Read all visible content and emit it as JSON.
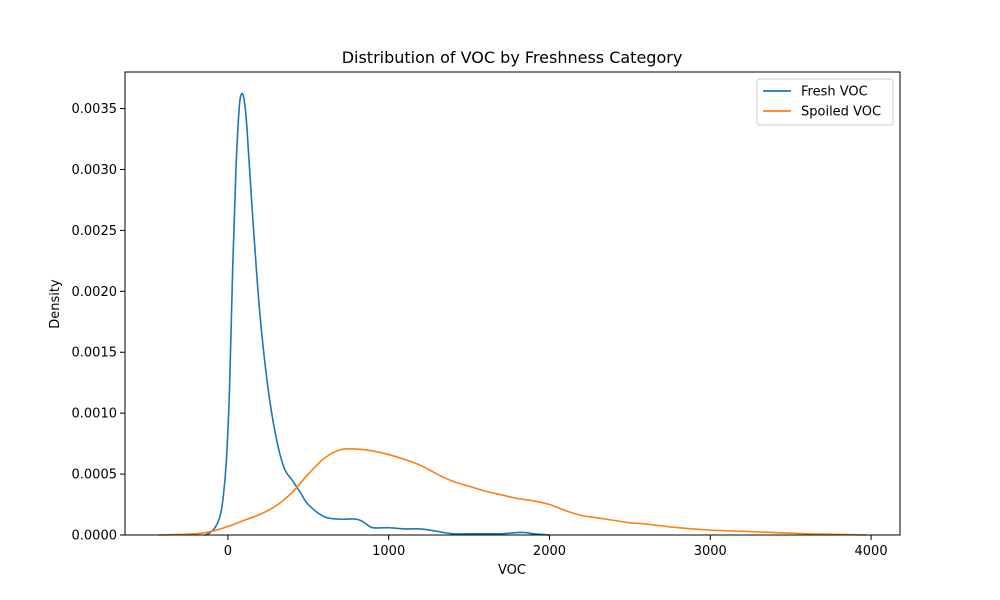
{
  "chart_data": {
    "type": "line",
    "title": "Distribution of VOC by Freshness Category",
    "xlabel": "VOC",
    "ylabel": "Density",
    "xlim": [
      -640,
      4180
    ],
    "ylim": [
      0,
      0.0038
    ],
    "x_ticks": [
      0,
      1000,
      2000,
      3000,
      4000
    ],
    "x_tick_labels": [
      "0",
      "1000",
      "2000",
      "3000",
      "4000"
    ],
    "y_ticks": [
      0,
      0.0005,
      0.001,
      0.0015,
      0.002,
      0.0025,
      0.003,
      0.0035
    ],
    "y_tick_labels": [
      "0.0000",
      "0.0005",
      "0.0010",
      "0.0015",
      "0.0020",
      "0.0025",
      "0.0030",
      "0.0035"
    ],
    "grid": false,
    "legend_position": "upper-right",
    "series": [
      {
        "name": "Fresh VOC",
        "color": "#1f77b4",
        "x": [
          -140,
          -110,
          -80,
          -50,
          -30,
          -10,
          10,
          30,
          50,
          70,
          85,
          100,
          115,
          130,
          160,
          200,
          250,
          300,
          350,
          400,
          450,
          500,
          600,
          700,
          800,
          850,
          900,
          1000,
          1100,
          1200,
          1300,
          1400,
          1500,
          1600,
          1700,
          1800,
          1850,
          1900,
          2000
        ],
        "y": [
          0,
          2e-05,
          6e-05,
          0.00015,
          0.0003,
          0.0006,
          0.0012,
          0.0022,
          0.003,
          0.0035,
          0.00362,
          0.00358,
          0.0034,
          0.0031,
          0.0025,
          0.0018,
          0.0012,
          0.0008,
          0.00055,
          0.00045,
          0.00035,
          0.00025,
          0.00015,
          0.00013,
          0.00013,
          0.0001,
          6e-05,
          6e-05,
          5e-05,
          5e-05,
          3e-05,
          1e-05,
          1e-05,
          1e-05,
          1e-05,
          2e-05,
          2e-05,
          1e-05,
          0
        ]
      },
      {
        "name": "Spoiled VOC",
        "color": "#ff7f0e",
        "x": [
          -430,
          -300,
          -200,
          -100,
          0,
          100,
          200,
          300,
          400,
          500,
          600,
          700,
          800,
          900,
          1000,
          1100,
          1200,
          1300,
          1400,
          1500,
          1600,
          1700,
          1800,
          1900,
          2000,
          2100,
          2200,
          2300,
          2400,
          2500,
          2600,
          2800,
          3000,
          3200,
          3400,
          3600,
          3800,
          3970
        ],
        "y": [
          0,
          5e-06,
          1e-05,
          3e-05,
          7e-05,
          0.00012,
          0.00017,
          0.00024,
          0.00035,
          0.0005,
          0.00063,
          0.0007,
          0.000705,
          0.00069,
          0.00066,
          0.00062,
          0.00057,
          0.0005,
          0.00044,
          0.0004,
          0.00036,
          0.00033,
          0.0003,
          0.00028,
          0.00025,
          0.0002,
          0.00016,
          0.00014,
          0.00012,
          0.0001,
          9e-05,
          6e-05,
          4e-05,
          3e-05,
          2e-05,
          1e-05,
          5e-06,
          0
        ]
      }
    ]
  }
}
